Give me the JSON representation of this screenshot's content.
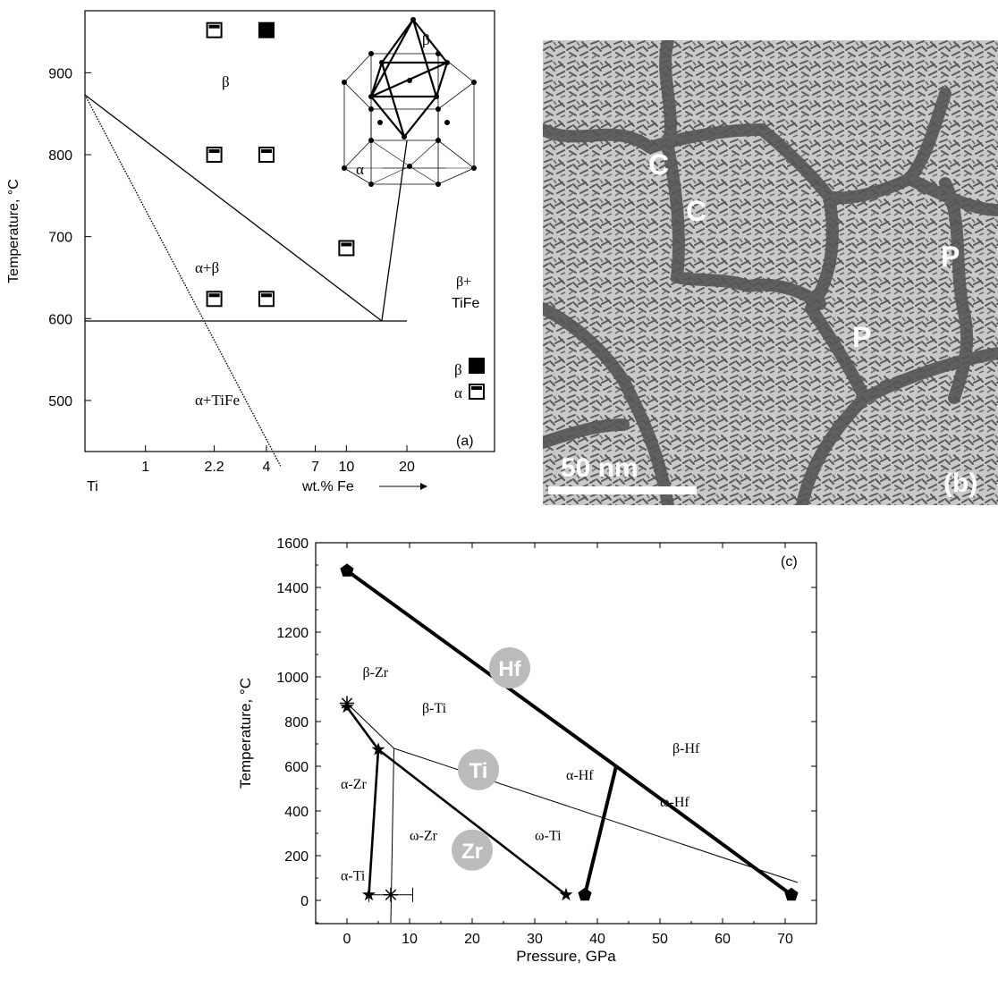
{
  "chart_data": [
    {
      "panel": "(a)",
      "type": "scatter",
      "title": "",
      "xlabel": "wt.% Fe",
      "ylabel": "Temperature, °C",
      "x_scale": "log",
      "x_tick_labels": [
        "1",
        "2.2",
        "4",
        "7",
        "10",
        "20"
      ],
      "x_ticks": [
        1,
        2.2,
        4,
        7,
        10,
        20
      ],
      "x_origin_label": "Ti",
      "ylim": [
        420,
        980
      ],
      "y_ticks": [
        500,
        600,
        700,
        800,
        900
      ],
      "region_labels": [
        "β",
        "α+β",
        "α+TiFe",
        "β+\nTiFe",
        "α"
      ],
      "legend": [
        {
          "label": "β",
          "marker": "filled-square"
        },
        {
          "label": "α",
          "marker": "open-square"
        }
      ],
      "legend_position": "bottom-right",
      "series": [
        {
          "name": "β",
          "marker": "filled-square",
          "points": [
            [
              4,
              952
            ]
          ]
        },
        {
          "name": "α",
          "marker": "open-square",
          "points": [
            [
              2.2,
              952
            ],
            [
              2.2,
              800
            ],
            [
              4,
              800
            ],
            [
              10,
              686
            ],
            [
              2.2,
              624
            ],
            [
              4,
              624
            ]
          ]
        }
      ],
      "lines": [
        {
          "style": "solid",
          "points": [
            [
              0.5,
              873
            ],
            [
              15,
              597
            ]
          ]
        },
        {
          "style": "solid",
          "points": [
            [
              0.5,
              597
            ],
            [
              20,
              597
            ]
          ]
        },
        {
          "style": "solid",
          "points": [
            [
              15,
              597
            ],
            [
              20,
              817
            ]
          ]
        },
        {
          "style": "dotted",
          "points": [
            [
              0.5,
              873
            ],
            [
              4.7,
              420
            ]
          ]
        }
      ],
      "inset": "crystal-structure"
    },
    {
      "panel": "(b)",
      "type": "image",
      "scale_bar": "50 nm",
      "labels": [
        "C",
        "C",
        "P",
        "P",
        "(b)"
      ]
    },
    {
      "panel": "(c)",
      "type": "line",
      "title": "",
      "xlabel": "Pressure, GPa",
      "ylabel": "Temperature, °C",
      "xlim": [
        -5,
        75
      ],
      "ylim": [
        -100,
        1600
      ],
      "x_ticks": [
        0,
        10,
        20,
        30,
        40,
        50,
        60,
        70
      ],
      "y_ticks": [
        0,
        200,
        400,
        600,
        800,
        1000,
        1200,
        1400,
        1600
      ],
      "element_badges": [
        "Hf",
        "Ti",
        "Zr"
      ],
      "phase_labels": [
        "β-Zr",
        "β-Ti",
        "β-Hf",
        "α-Hf",
        "α-Zr",
        "ω-Hf",
        "ω-Zr",
        "ω-Ti",
        "α-Ti"
      ],
      "series": [
        {
          "name": "Hf",
          "width": "thick",
          "segments": [
            [
              [
                0,
                1475
              ],
              [
                43,
                600
              ]
            ],
            [
              [
                43,
                600
              ],
              [
                71,
                25
              ]
            ],
            [
              [
                38,
                25
              ],
              [
                43,
                600
              ]
            ]
          ],
          "markers": [
            [
              0,
              1475
            ],
            [
              38,
              25
            ],
            [
              71,
              25
            ]
          ]
        },
        {
          "name": "Zr",
          "width": "medium",
          "segments": [
            [
              [
                0,
                865
              ],
              [
                5,
                675
              ]
            ],
            [
              [
                3.5,
                25
              ],
              [
                5,
                675
              ]
            ],
            [
              [
                5,
                675
              ],
              [
                35,
                25
              ]
            ]
          ],
          "markers": [
            [
              0,
              865
            ],
            [
              5,
              675
            ],
            [
              3.5,
              25
            ],
            [
              35,
              25
            ]
          ]
        },
        {
          "name": "Ti",
          "width": "thin",
          "segments": [
            [
              [
                0,
                882
              ],
              [
                7.5,
                680
              ]
            ],
            [
              [
                7.5,
                680
              ],
              [
                72,
                80
              ]
            ],
            [
              [
                7,
                -100
              ],
              [
                7.5,
                680
              ]
            ]
          ],
          "markers": [
            [
              0,
              882
            ],
            [
              7,
              25
            ]
          ],
          "error_bar": {
            "x": 7,
            "y": 25,
            "xerr": [
              3.5,
              10.5
            ]
          }
        }
      ]
    }
  ]
}
